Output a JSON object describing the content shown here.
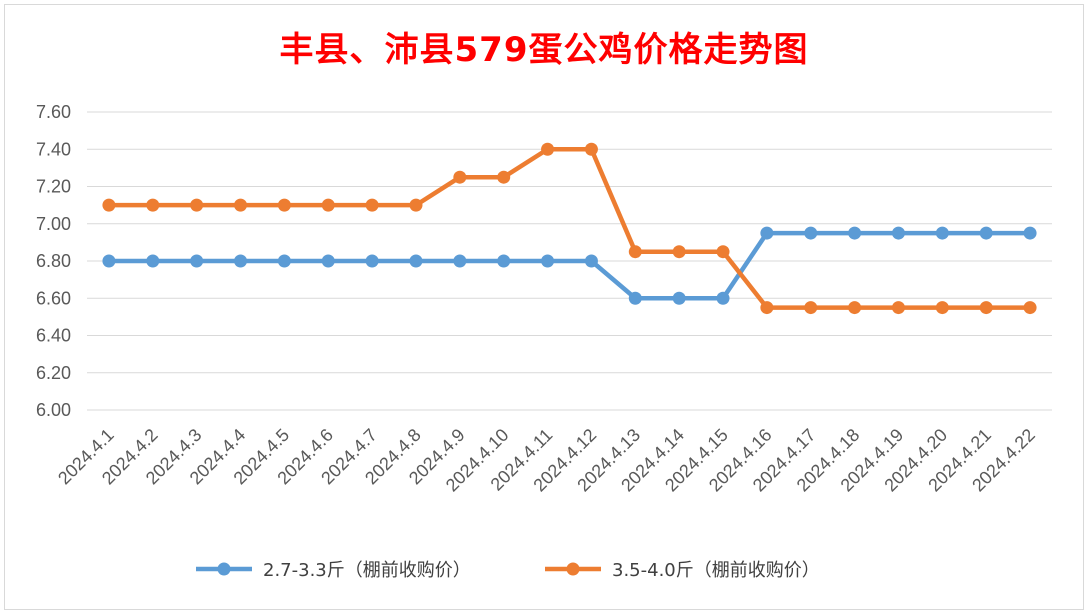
{
  "chart_data": {
    "type": "line",
    "title": "丰县、沛县579蛋公鸡价格走势图",
    "xlabel": "",
    "ylabel": "",
    "categories": [
      "2024.4.1",
      "2024.4.2",
      "2024.4.3",
      "2024.4.4",
      "2024.4.5",
      "2024.4.6",
      "2024.4.7",
      "2024.4.8",
      "2024.4.9",
      "2024.4.10",
      "2024.4.11",
      "2024.4.12",
      "2024.4.13",
      "2024.4.14",
      "2024.4.15",
      "2024.4.16",
      "2024.4.17",
      "2024.4.18",
      "2024.4.19",
      "2024.4.20",
      "2024.4.21",
      "2024.4.22"
    ],
    "ylim": [
      6.0,
      7.6
    ],
    "yticks": [
      "6.00",
      "6.20",
      "6.40",
      "6.60",
      "6.80",
      "7.00",
      "7.20",
      "7.40",
      "7.60"
    ],
    "grid": true,
    "legend_position": "bottom",
    "series": [
      {
        "name": "2.7-3.3斤（棚前收购价）",
        "color": "#5b9bd5",
        "values": [
          6.8,
          6.8,
          6.8,
          6.8,
          6.8,
          6.8,
          6.8,
          6.8,
          6.8,
          6.8,
          6.8,
          6.8,
          6.6,
          6.6,
          6.6,
          6.95,
          6.95,
          6.95,
          6.95,
          6.95,
          6.95,
          6.95
        ]
      },
      {
        "name": "3.5-4.0斤（棚前收购价）",
        "color": "#ed7d31",
        "values": [
          7.1,
          7.1,
          7.1,
          7.1,
          7.1,
          7.1,
          7.1,
          7.1,
          7.25,
          7.25,
          7.4,
          7.4,
          6.85,
          6.85,
          6.85,
          6.55,
          6.55,
          6.55,
          6.55,
          6.55,
          6.55,
          6.55
        ]
      }
    ]
  }
}
